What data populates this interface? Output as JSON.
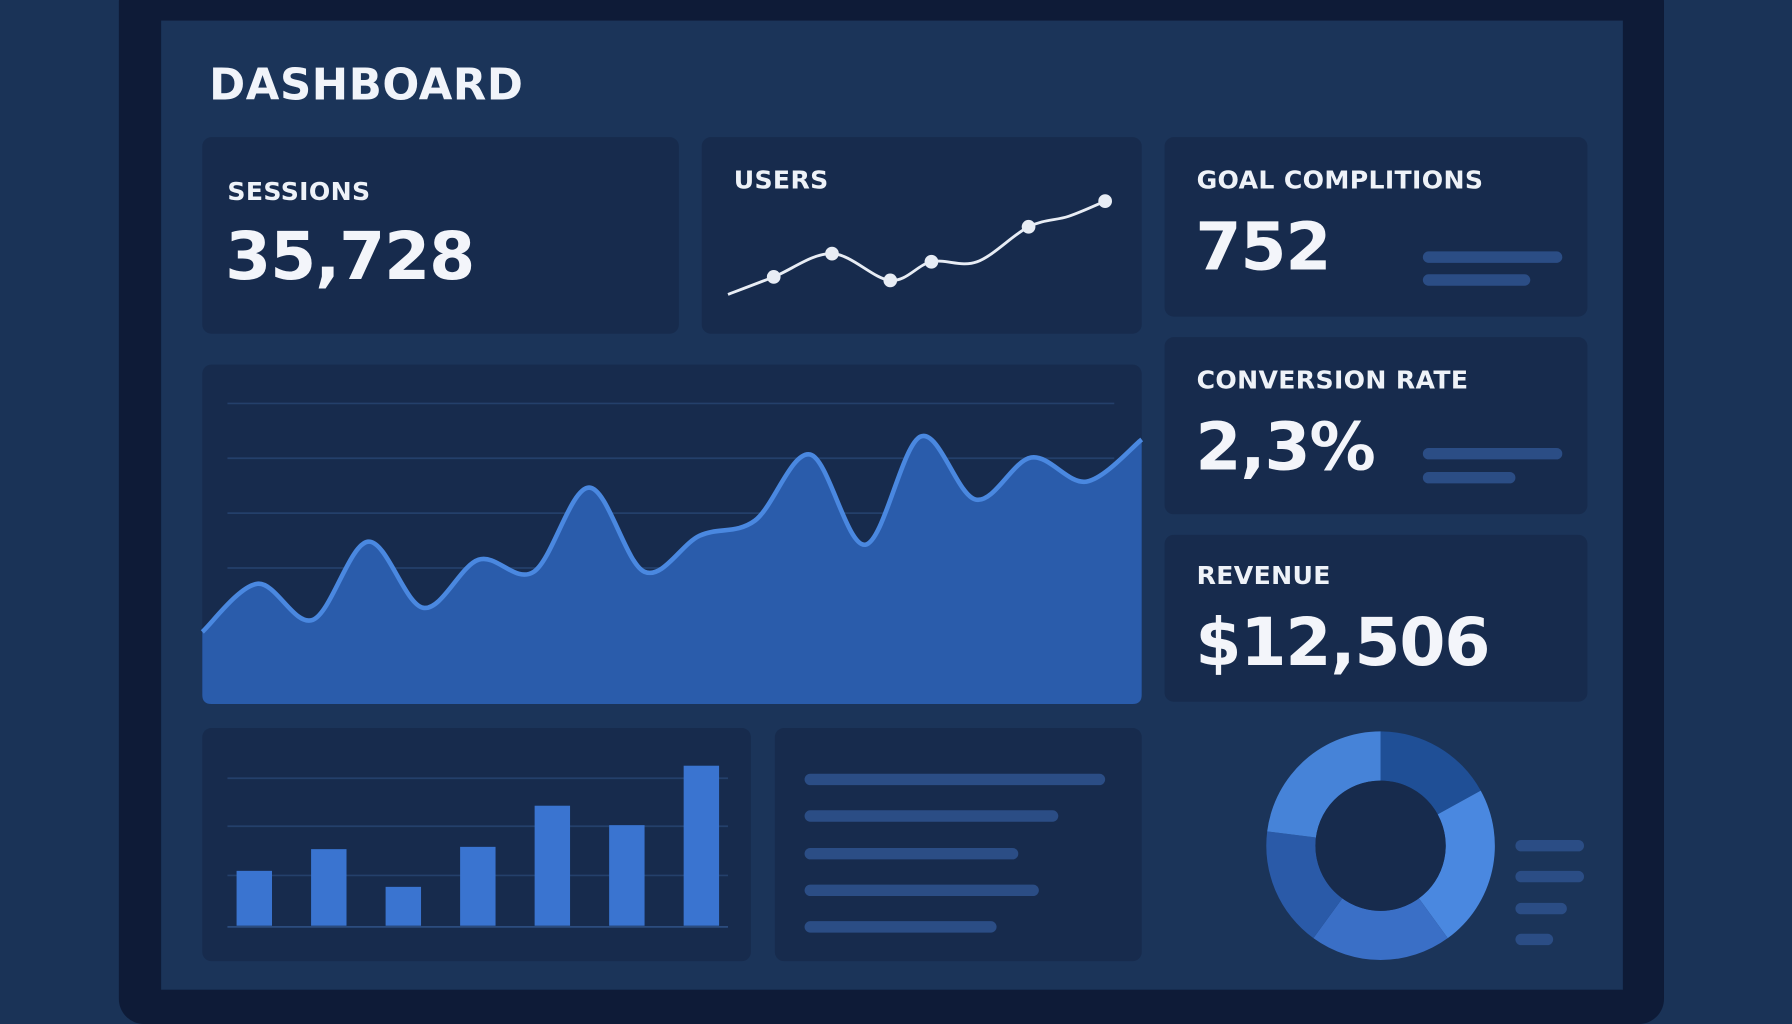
{
  "header": {
    "title": "DASHBOARD"
  },
  "colors": {
    "background": "#1a3357",
    "card": "#172b4d",
    "accent": "#3f7ad6",
    "accent_light": "#4a88e0",
    "text": "#f1f4fa"
  },
  "sessions": {
    "label": "SESSIONS",
    "value": "35,728"
  },
  "users": {
    "label": "USERS",
    "sparkline": [
      20,
      35,
      55,
      32,
      48,
      48,
      78,
      87,
      100
    ],
    "markers": [
      1,
      2,
      3,
      4,
      6,
      8
    ]
  },
  "goal_completions": {
    "label": "GOAL COMPLITIONS",
    "value": "752"
  },
  "conversion_rate": {
    "label": "CONVERSION RATE",
    "value": "2,3%"
  },
  "revenue": {
    "label": "REVENUE",
    "value": "$12,506"
  },
  "chart_data": [
    {
      "type": "area",
      "values": [
        24,
        40,
        28,
        54,
        32,
        48,
        44,
        72,
        44,
        56,
        61,
        83,
        53,
        89,
        68,
        82,
        74,
        88
      ],
      "ylim": [
        0,
        100
      ],
      "grid": true
    },
    {
      "type": "bar",
      "values": [
        48,
        67,
        34,
        69,
        105,
        88,
        140
      ],
      "ylim": [
        0,
        140
      ],
      "grid": true
    },
    {
      "type": "pie",
      "donut": true,
      "values": [
        17,
        23,
        20,
        17,
        23
      ],
      "colors": [
        "#1f4f96",
        "#4a88e0",
        "#3a6fc6",
        "#2a5aa8",
        "#4683d8"
      ]
    }
  ]
}
